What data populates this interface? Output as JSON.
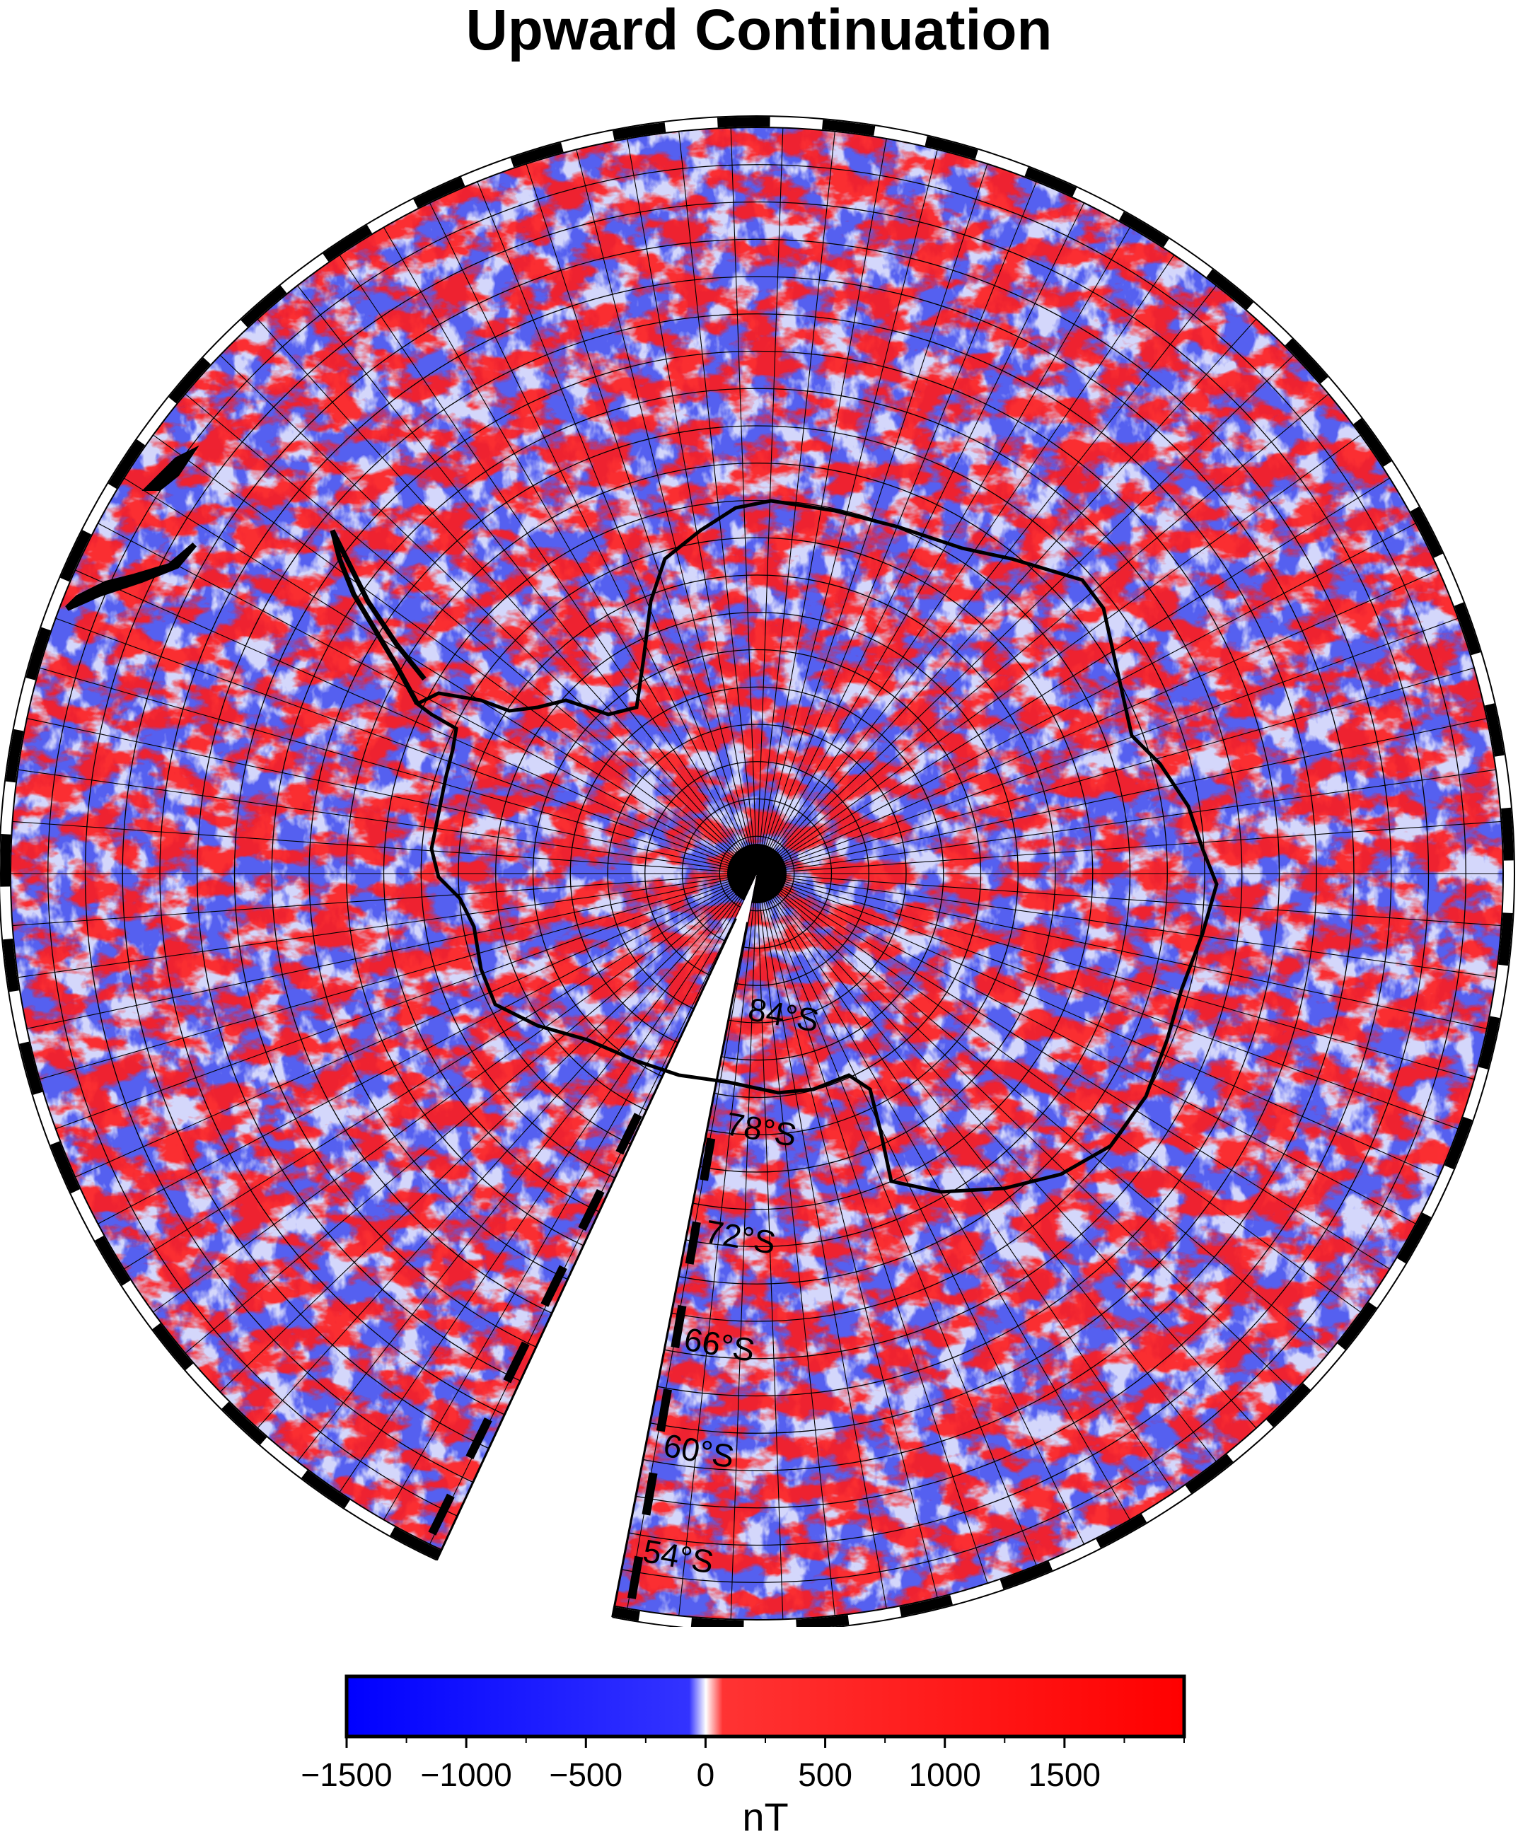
{
  "title": "Upward Continuation",
  "map": {
    "projection": "south-polar-stereographic",
    "latitude_labels": [
      "84°S",
      "78°S",
      "72°S",
      "66°S",
      "60°S",
      "54°S"
    ],
    "colors": {
      "negative": "#0000ff",
      "zero": "#ffffff",
      "positive": "#ff0000",
      "coastline": "#000000",
      "graticule": "#000000"
    }
  },
  "colorbar": {
    "min": -1500,
    "max": 2000,
    "tick_labels": [
      "−1500",
      "−1000",
      "−500",
      "0",
      "500",
      "1000",
      "1500"
    ],
    "tick_values": [
      -1500,
      -1000,
      -500,
      0,
      500,
      1000,
      1500
    ],
    "unit": "nT"
  }
}
